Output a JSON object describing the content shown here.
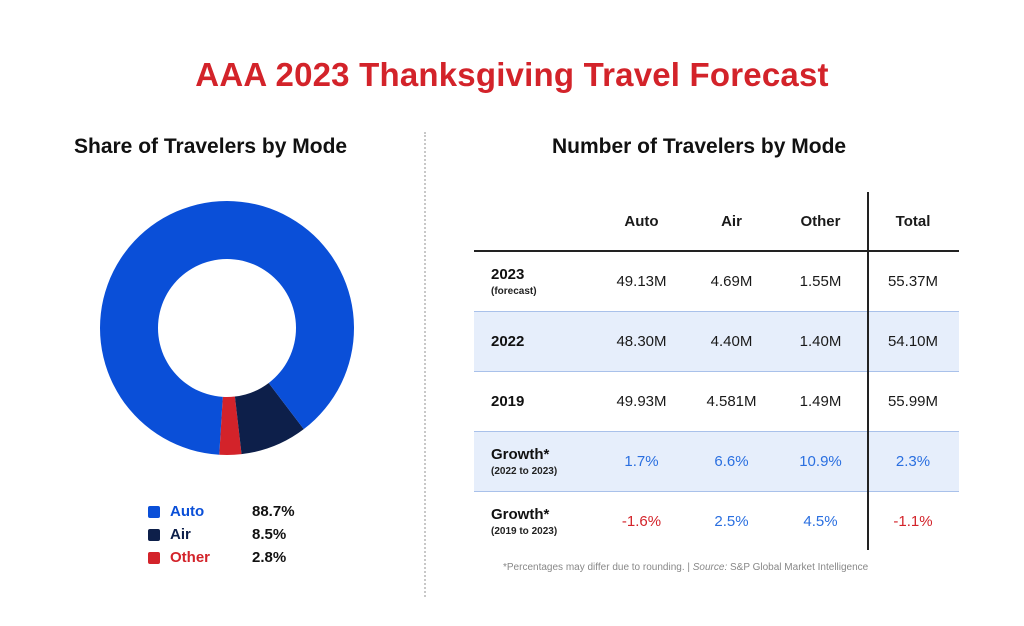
{
  "title": "AAA 2023 Thanksgiving Travel Forecast",
  "left_panel": {
    "title": "Share of Travelers by Mode",
    "legend": [
      {
        "label": "Auto",
        "value": "88.7%",
        "color": "#0a4fd8",
        "label_color": "#0a4fd8"
      },
      {
        "label": "Air",
        "value": "8.5%",
        "color": "#0d1f4a",
        "label_color": "#0d1f4a"
      },
      {
        "label": "Other",
        "value": "2.8%",
        "color": "#d3232a",
        "label_color": "#d3232a"
      }
    ]
  },
  "right_panel": {
    "title": "Number of Travelers by Mode",
    "headers": [
      "Auto",
      "Air",
      "Other",
      "Total"
    ],
    "rows": [
      {
        "label": "2023",
        "sublabel": "(forecast)",
        "cells": [
          "49.13M",
          "4.69M",
          "1.55M",
          "55.37M"
        ],
        "shaded": false
      },
      {
        "label": "2022",
        "sublabel": "",
        "cells": [
          "48.30M",
          "4.40M",
          "1.40M",
          "54.10M"
        ],
        "shaded": true
      },
      {
        "label": "2019",
        "sublabel": "",
        "cells": [
          "49.93M",
          "4.581M",
          "1.49M",
          "55.99M"
        ],
        "shaded": false
      },
      {
        "label": "Growth*",
        "sublabel": "(2022 to 2023)",
        "cells": [
          "1.7%",
          "6.6%",
          "10.9%",
          "2.3%"
        ],
        "shaded": true
      },
      {
        "label": "Growth*",
        "sublabel": "(2019 to 2023)",
        "cells": [
          "-1.6%",
          "2.5%",
          "4.5%",
          "-1.1%"
        ],
        "shaded": false
      }
    ],
    "footnote_prefix": "*Percentages may differ due to rounding. | ",
    "footnote_source_label": "Source:",
    "footnote_source": " S&P Global Market Intelligence"
  },
  "colors": {
    "positive_growth": "#2a6fe0",
    "negative_growth": "#d3232a"
  },
  "chart_data": [
    {
      "type": "pie",
      "title": "Share of Travelers by Mode",
      "donut": true,
      "categories": [
        "Auto",
        "Air",
        "Other"
      ],
      "values": [
        88.7,
        8.5,
        2.8
      ],
      "colors": [
        "#0a4fd8",
        "#0d1f4a",
        "#d3232a"
      ],
      "legend_position": "bottom"
    },
    {
      "type": "table",
      "title": "Number of Travelers by Mode",
      "columns": [
        "",
        "Auto",
        "Air",
        "Other",
        "Total"
      ],
      "rows": [
        [
          "2023 (forecast)",
          "49.13M",
          "4.69M",
          "1.55M",
          "55.37M"
        ],
        [
          "2022",
          "48.30M",
          "4.40M",
          "1.40M",
          "54.10M"
        ],
        [
          "2019",
          "49.93M",
          "4.581M",
          "1.49M",
          "55.99M"
        ],
        [
          "Growth* (2022 to 2023)",
          "1.7%",
          "6.6%",
          "10.9%",
          "2.3%"
        ],
        [
          "Growth* (2019 to 2023)",
          "-1.6%",
          "2.5%",
          "4.5%",
          "-1.1%"
        ]
      ]
    }
  ]
}
